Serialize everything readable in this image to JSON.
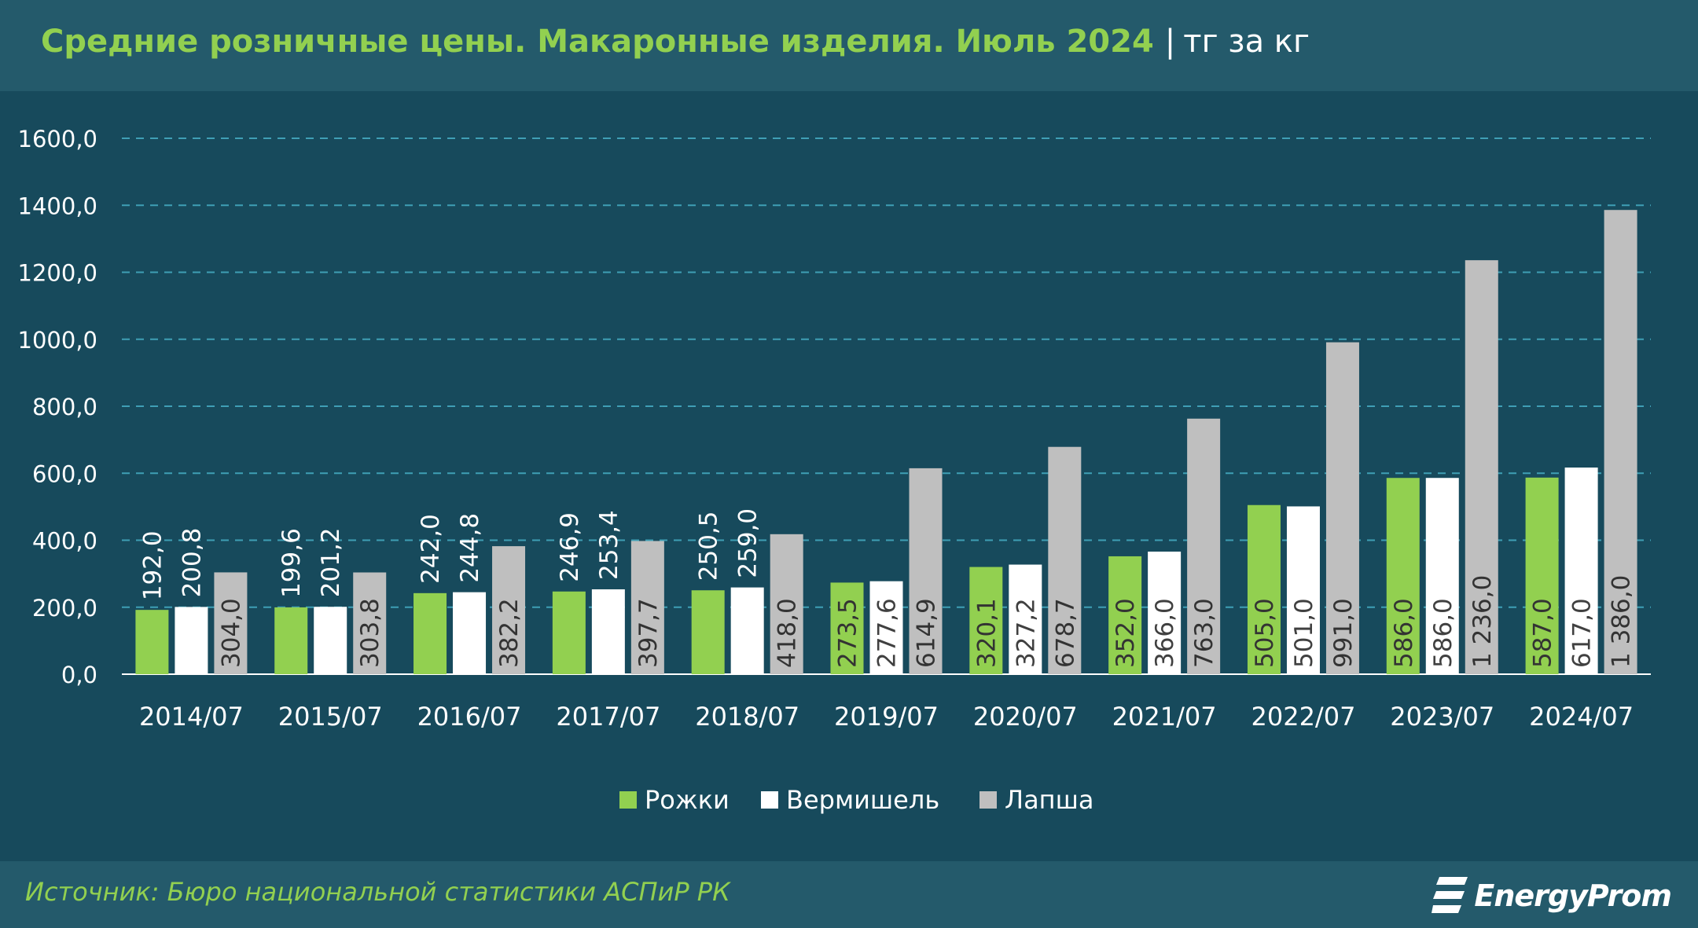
{
  "header": {
    "title": "Средние розничные цены. Макаронные изделия. Июль 2024",
    "separator": "|",
    "unit": "тг за кг"
  },
  "footer": {
    "source": "Источник: Бюро национальной статистики АСПиР РК",
    "logo_text": "EnergyProm"
  },
  "colors": {
    "background": "#174a5c",
    "header_bg": "#245a6b",
    "grid": "#3f9fb5",
    "title_green": "#92d050"
  },
  "chart_data": {
    "type": "bar",
    "title": "Средние розничные цены. Макаронные изделия. Июль 2024",
    "xlabel": "",
    "ylabel": "",
    "ylim": [
      0,
      1600
    ],
    "yticks": [
      "0,0",
      "200,0",
      "400,0",
      "600,0",
      "800,0",
      "1000,0",
      "1200,0",
      "1400,0",
      "1600,0"
    ],
    "grid": true,
    "legend_position": "bottom",
    "categories": [
      "2014/07",
      "2015/07",
      "2016/07",
      "2017/07",
      "2018/07",
      "2019/07",
      "2020/07",
      "2021/07",
      "2022/07",
      "2023/07",
      "2024/07"
    ],
    "series": [
      {
        "name": "Рожки",
        "color": "#92d050",
        "values": [
          192.0,
          199.6,
          242.0,
          246.9,
          250.5,
          273.5,
          320.1,
          352.0,
          505.0,
          586.0,
          587.0
        ],
        "labels": [
          "192,0",
          "199,6",
          "242,0",
          "246,9",
          "250,5",
          "273,5",
          "320,1",
          "352,0",
          "505,0",
          "586,0",
          "587,0"
        ],
        "label_inside": [
          false,
          false,
          false,
          false,
          false,
          true,
          true,
          true,
          true,
          true,
          true
        ]
      },
      {
        "name": "Вермишель",
        "color": "#ffffff",
        "values": [
          200.8,
          201.2,
          244.8,
          253.4,
          259.0,
          277.6,
          327.2,
          366.0,
          501.0,
          586.0,
          617.0
        ],
        "labels": [
          "200,8",
          "201,2",
          "244,8",
          "253,4",
          "259,0",
          "277,6",
          "327,2",
          "366,0",
          "501,0",
          "586,0",
          "617,0"
        ],
        "label_inside": [
          false,
          false,
          false,
          false,
          false,
          true,
          true,
          true,
          true,
          true,
          true
        ]
      },
      {
        "name": "Лапша",
        "color": "#bfbfbf",
        "values": [
          304.0,
          303.8,
          382.2,
          397.7,
          418.0,
          614.9,
          678.7,
          763.0,
          991.0,
          1236.0,
          1386.0
        ],
        "labels": [
          "304,0",
          "303,8",
          "382,2",
          "397,7",
          "418,0",
          "614,9",
          "678,7",
          "763,0",
          "991,0",
          "1 236,0",
          "1 386,0"
        ],
        "label_inside": [
          true,
          true,
          true,
          true,
          true,
          true,
          true,
          true,
          true,
          true,
          true
        ]
      }
    ]
  }
}
